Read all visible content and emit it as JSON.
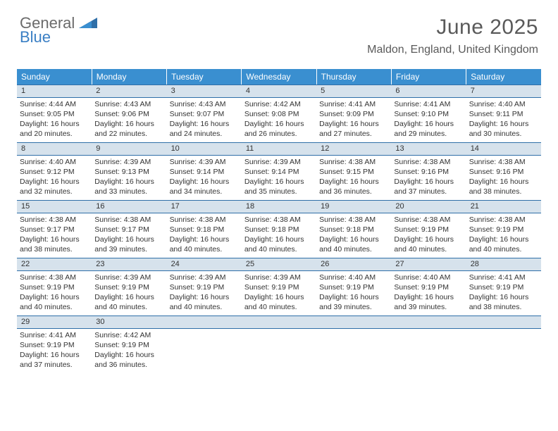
{
  "logo": {
    "general": "General",
    "blue": "Blue"
  },
  "title": "June 2025",
  "location": "Maldon, England, United Kingdom",
  "colors": {
    "header_bg": "#3a8fd0",
    "daynum_bg": "#d6e2ec",
    "border": "#2f6fa8",
    "text": "#333333",
    "logo_gray": "#6b6b6b",
    "logo_blue": "#3a7fc4"
  },
  "weekdays": [
    "Sunday",
    "Monday",
    "Tuesday",
    "Wednesday",
    "Thursday",
    "Friday",
    "Saturday"
  ],
  "days": [
    {
      "n": "1",
      "sr": "4:44 AM",
      "ss": "9:05 PM",
      "dl": "16 hours and 20 minutes."
    },
    {
      "n": "2",
      "sr": "4:43 AM",
      "ss": "9:06 PM",
      "dl": "16 hours and 22 minutes."
    },
    {
      "n": "3",
      "sr": "4:43 AM",
      "ss": "9:07 PM",
      "dl": "16 hours and 24 minutes."
    },
    {
      "n": "4",
      "sr": "4:42 AM",
      "ss": "9:08 PM",
      "dl": "16 hours and 26 minutes."
    },
    {
      "n": "5",
      "sr": "4:41 AM",
      "ss": "9:09 PM",
      "dl": "16 hours and 27 minutes."
    },
    {
      "n": "6",
      "sr": "4:41 AM",
      "ss": "9:10 PM",
      "dl": "16 hours and 29 minutes."
    },
    {
      "n": "7",
      "sr": "4:40 AM",
      "ss": "9:11 PM",
      "dl": "16 hours and 30 minutes."
    },
    {
      "n": "8",
      "sr": "4:40 AM",
      "ss": "9:12 PM",
      "dl": "16 hours and 32 minutes."
    },
    {
      "n": "9",
      "sr": "4:39 AM",
      "ss": "9:13 PM",
      "dl": "16 hours and 33 minutes."
    },
    {
      "n": "10",
      "sr": "4:39 AM",
      "ss": "9:14 PM",
      "dl": "16 hours and 34 minutes."
    },
    {
      "n": "11",
      "sr": "4:39 AM",
      "ss": "9:14 PM",
      "dl": "16 hours and 35 minutes."
    },
    {
      "n": "12",
      "sr": "4:38 AM",
      "ss": "9:15 PM",
      "dl": "16 hours and 36 minutes."
    },
    {
      "n": "13",
      "sr": "4:38 AM",
      "ss": "9:16 PM",
      "dl": "16 hours and 37 minutes."
    },
    {
      "n": "14",
      "sr": "4:38 AM",
      "ss": "9:16 PM",
      "dl": "16 hours and 38 minutes."
    },
    {
      "n": "15",
      "sr": "4:38 AM",
      "ss": "9:17 PM",
      "dl": "16 hours and 38 minutes."
    },
    {
      "n": "16",
      "sr": "4:38 AM",
      "ss": "9:17 PM",
      "dl": "16 hours and 39 minutes."
    },
    {
      "n": "17",
      "sr": "4:38 AM",
      "ss": "9:18 PM",
      "dl": "16 hours and 40 minutes."
    },
    {
      "n": "18",
      "sr": "4:38 AM",
      "ss": "9:18 PM",
      "dl": "16 hours and 40 minutes."
    },
    {
      "n": "19",
      "sr": "4:38 AM",
      "ss": "9:18 PM",
      "dl": "16 hours and 40 minutes."
    },
    {
      "n": "20",
      "sr": "4:38 AM",
      "ss": "9:19 PM",
      "dl": "16 hours and 40 minutes."
    },
    {
      "n": "21",
      "sr": "4:38 AM",
      "ss": "9:19 PM",
      "dl": "16 hours and 40 minutes."
    },
    {
      "n": "22",
      "sr": "4:38 AM",
      "ss": "9:19 PM",
      "dl": "16 hours and 40 minutes."
    },
    {
      "n": "23",
      "sr": "4:39 AM",
      "ss": "9:19 PM",
      "dl": "16 hours and 40 minutes."
    },
    {
      "n": "24",
      "sr": "4:39 AM",
      "ss": "9:19 PM",
      "dl": "16 hours and 40 minutes."
    },
    {
      "n": "25",
      "sr": "4:39 AM",
      "ss": "9:19 PM",
      "dl": "16 hours and 40 minutes."
    },
    {
      "n": "26",
      "sr": "4:40 AM",
      "ss": "9:19 PM",
      "dl": "16 hours and 39 minutes."
    },
    {
      "n": "27",
      "sr": "4:40 AM",
      "ss": "9:19 PM",
      "dl": "16 hours and 39 minutes."
    },
    {
      "n": "28",
      "sr": "4:41 AM",
      "ss": "9:19 PM",
      "dl": "16 hours and 38 minutes."
    },
    {
      "n": "29",
      "sr": "4:41 AM",
      "ss": "9:19 PM",
      "dl": "16 hours and 37 minutes."
    },
    {
      "n": "30",
      "sr": "4:42 AM",
      "ss": "9:19 PM",
      "dl": "16 hours and 36 minutes."
    }
  ],
  "labels": {
    "sunrise": "Sunrise: ",
    "sunset": "Sunset: ",
    "daylight": "Daylight: "
  },
  "start_weekday": 0,
  "grid_cols": 7
}
